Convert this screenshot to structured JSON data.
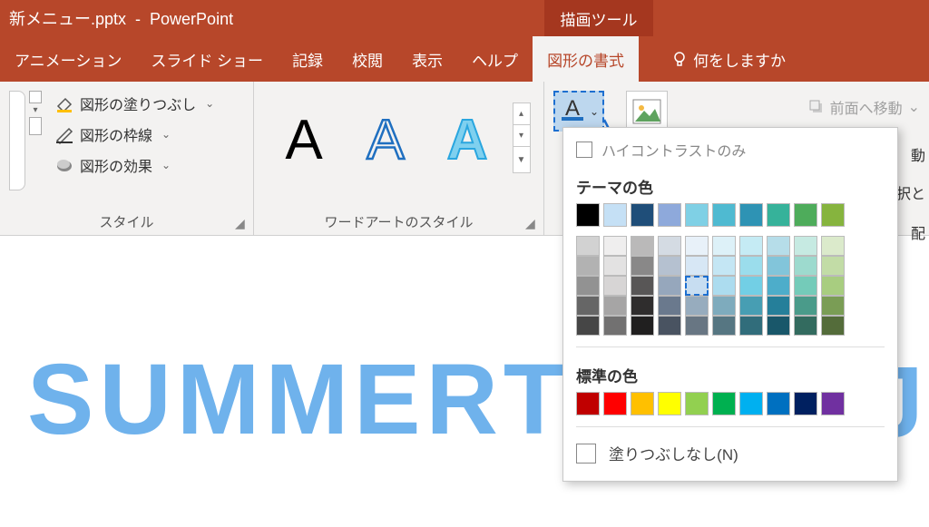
{
  "title": {
    "filename": "新メニュー.pptx",
    "app": "PowerPoint",
    "contextTab": "描画ツール"
  },
  "tabs": {
    "items": [
      "アニメーション",
      "スライド ショー",
      "記録",
      "校閲",
      "表示",
      "ヘルプ",
      "図形の書式"
    ],
    "active": "図形の書式",
    "tellme": "何をしますか"
  },
  "ribbon": {
    "shapeStylesLabel": "スタイル",
    "shapeButtons": {
      "fill": "図形の塗りつぶし",
      "outline": "図形の枠線",
      "effects": "図形の効果"
    },
    "wordartStylesLabel": "ワードアートのスタイル",
    "wordartColors": [
      "#000000",
      "#1f6fc0",
      "#2aa6df"
    ],
    "textFillUnderline": "#1f6fc0",
    "arrange": {
      "forward": "前面へ移動",
      "backward": "動",
      "select": "-の選択と",
      "align": "配"
    }
  },
  "popup": {
    "highContrast": "ハイ",
    "highContrast2": "コントラストのみ",
    "themeTitle": "テーマの",
    "themeTitle2": "色",
    "themeRow": [
      "#ffffff",
      "#000000",
      "#e7e6e6",
      "#44546a",
      "#5b9bd5",
      "#ed7d31",
      "#a5a5a5",
      "#ffc000",
      "#4472c4",
      "#70ad47"
    ],
    "realThemeRow": [
      "#000000",
      "#c5e0f5",
      "#1f4e79",
      "#8ea9db",
      "#7fd0e5",
      "#4fbad1",
      "#2e93b4",
      "#36b29a",
      "#4eac5b",
      "#86b43e"
    ],
    "shadeBases": [
      "#7f7f7f",
      "#d0cece",
      "#3b3838",
      "#8497b0",
      "#bdd7ee",
      "#9dd6ec",
      "#59c6e0",
      "#2e9fc1",
      "#5cc2ad",
      "#99c46a"
    ],
    "standardTitle": "標準の色",
    "standardColors": [
      "#c00000",
      "#ff0000",
      "#ffc000",
      "#ffff00",
      "#92d050",
      "#00b050",
      "#00b0f0",
      "#0070c0",
      "#002060",
      "#7030a0"
    ],
    "noFill": "塗りつぶしなし(N)",
    "targetIndex": 4,
    "targetShadeRow": 2,
    "arrowColor": "#1d6fd0"
  },
  "slide": {
    "text": "SUMMERTIM",
    "tail": "J",
    "color": "#6fb2ec"
  }
}
